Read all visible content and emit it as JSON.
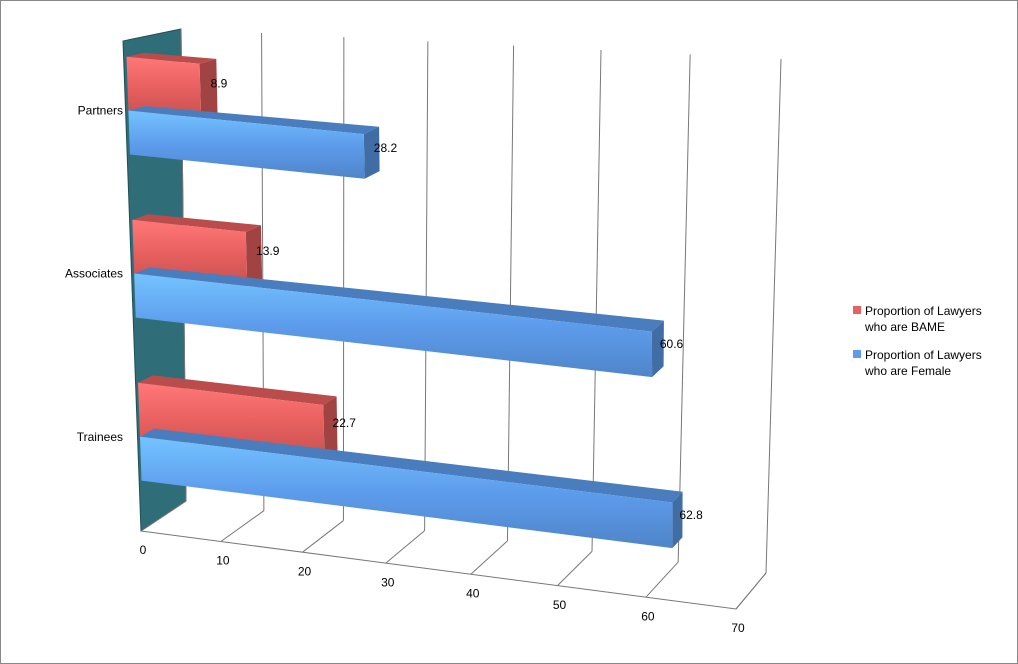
{
  "chart_data": {
    "type": "bar3d",
    "categories": [
      "Partners",
      "Associates",
      "Trainees"
    ],
    "series": [
      {
        "name": "Proportion of Lawyers who are BAME",
        "color": "#e8605f",
        "values": [
          8.9,
          13.9,
          22.7
        ]
      },
      {
        "name": "Proportion of Lawyers who are Female",
        "color": "#5d9cec",
        "values": [
          28.2,
          60.6,
          62.8
        ]
      }
    ],
    "xlim": [
      0,
      70
    ],
    "xticks": [
      0,
      10,
      20,
      30,
      40,
      50,
      60,
      70
    ],
    "grid": true,
    "legend": "right"
  }
}
